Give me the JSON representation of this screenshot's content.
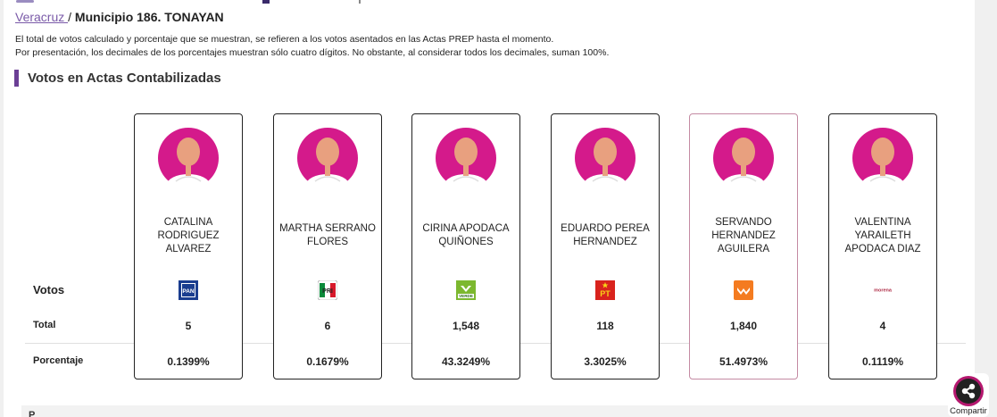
{
  "breadcrumb": {
    "state_link": "Veracruz ",
    "separator": "/ ",
    "municipio": "Municipio 186. TONAYAN"
  },
  "notes": {
    "line1": "El total de votos calculado y porcentaje que se muestran, se refieren a los votos asentados en las Actas PREP hasta el momento.",
    "line2": "Por presentación, los decimales de los porcentajes muestran sólo cuatro dígitos. No obstante, al considerar todos los decimales, suman 100%."
  },
  "section": {
    "title": "Votos en Actas Contabilizadas"
  },
  "row_labels": {
    "votos": "Votos",
    "total": "Total",
    "porcentaje": "Porcentaje"
  },
  "candidates": [
    {
      "name": "Catalina Rodriguez Alvarez",
      "party": "PAN",
      "party_icon": "pan-logo",
      "total": "5",
      "pct": "0.1399%",
      "winner": false
    },
    {
      "name": "Martha Serrano Flores",
      "party": "PRI",
      "party_icon": "pri-logo",
      "total": "6",
      "pct": "0.1679%",
      "winner": false
    },
    {
      "name": "Cirina Apodaca Quiñones",
      "party": "VERDE",
      "party_icon": "verde-logo",
      "total": "1,548",
      "pct": "43.3249%",
      "winner": false
    },
    {
      "name": "Eduardo Perea Hernandez",
      "party": "PT",
      "party_icon": "pt-logo",
      "total": "118",
      "pct": "3.3025%",
      "winner": false
    },
    {
      "name": "Servando Hernandez Aguilera",
      "party": "MC",
      "party_icon": "movimiento-ciudadano-logo",
      "total": "1,840",
      "pct": "51.4973%",
      "winner": true
    },
    {
      "name": "Valentina Yaraileth Apodaca Diaz",
      "party": "morena",
      "party_icon": "morena-logo",
      "total": "4",
      "pct": "0.1119%",
      "winner": false
    }
  ],
  "bottom": {
    "partial_text": "P"
  },
  "share": {
    "label": "Compartir"
  },
  "colors": {
    "accent": "#6b3f95",
    "avatar_bg": "#d41a8b",
    "skin": "#e8a07f",
    "winner_border": "#c48aa3",
    "share_ring": "#b5186f"
  }
}
